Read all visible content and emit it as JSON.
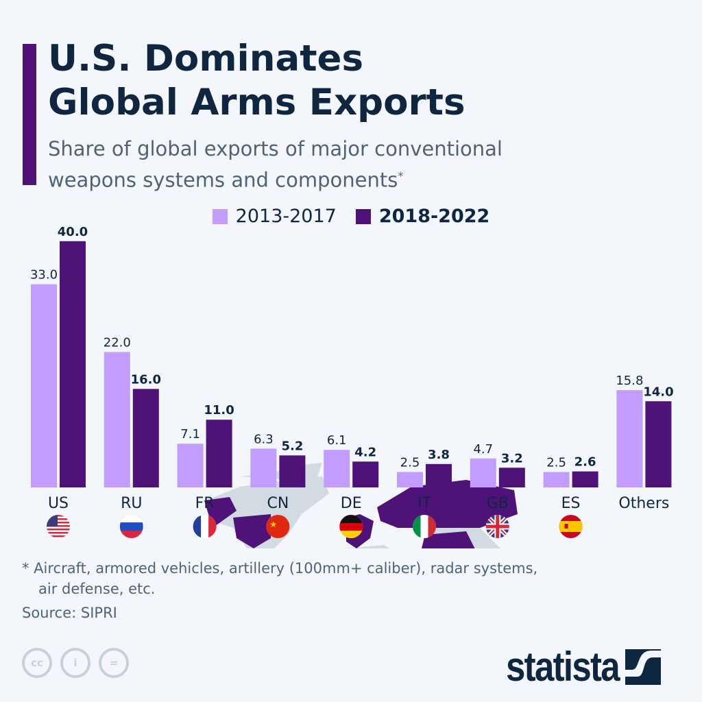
{
  "header": {
    "title_line1": "U.S. Dominates",
    "title_line2": "Global Arms Exports",
    "subtitle": "Share of global exports of major conventional weapons systems and components",
    "subtitle_mark": "*"
  },
  "colors": {
    "series_2013_2017": "#c39cff",
    "series_2018_2022": "#4f1279",
    "background": "#f3f6fa",
    "map_gray": "#d3dbe2"
  },
  "chart_data": {
    "type": "bar",
    "categories": [
      "US",
      "RU",
      "FR",
      "CN",
      "DE",
      "IT",
      "GB",
      "ES",
      "Others"
    ],
    "series": [
      {
        "name": "2013-2017",
        "values": [
          33.0,
          22.0,
          7.1,
          6.3,
          6.1,
          2.5,
          4.7,
          2.5,
          15.8
        ]
      },
      {
        "name": "2018-2022",
        "values": [
          40.0,
          16.0,
          11.0,
          5.2,
          4.2,
          3.8,
          3.2,
          2.6,
          14.0
        ]
      }
    ],
    "flags": [
      "us-flag-icon",
      "russia-flag-icon",
      "france-flag-icon",
      "china-flag-icon",
      "germany-flag-icon",
      "italy-flag-icon",
      "uk-flag-icon",
      "spain-flag-icon",
      null
    ],
    "legend_placement": "top-center",
    "grid": false,
    "highlighted_map_countries": [
      "US",
      "RU",
      "FR",
      "CN",
      "DE",
      "IT",
      "GB",
      "ES"
    ]
  },
  "footer": {
    "note_line1": "* Aircraft, armored vehicles, artillery (100mm+ caliber), radar systems,",
    "note_line2": "air defense, etc.",
    "source": "Source: SIPRI",
    "cc1": "cc",
    "brand": "statista"
  }
}
